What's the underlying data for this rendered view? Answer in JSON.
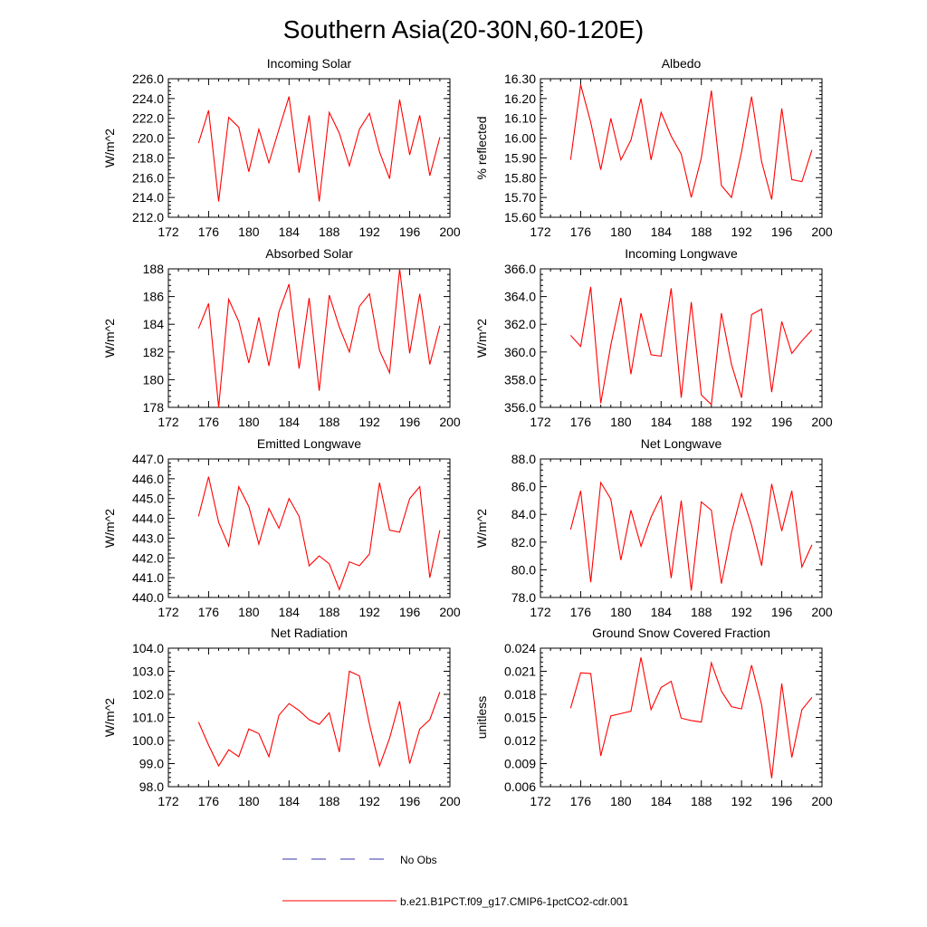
{
  "figure": {
    "title": "Southern Asia(20-30N,60-120E)"
  },
  "legend": {
    "entries": [
      {
        "label": "No Obs",
        "color": "#3333aa",
        "style": "dashed"
      },
      {
        "label": "b.e21.B1PCT.f09_g17.CMIP6-1pctCO2-cdr.001",
        "color": "#ff0000",
        "style": "solid"
      }
    ]
  },
  "chart_data": [
    {
      "type": "line",
      "title": "Incoming Solar",
      "ylabel": "W/m^2",
      "xlim": [
        172,
        200
      ],
      "ylim": [
        212,
        226
      ],
      "xticks": [
        172,
        176,
        180,
        184,
        188,
        192,
        196,
        200
      ],
      "xticklabels": [
        "172",
        "176",
        "180",
        "184",
        "188",
        "192",
        "196",
        "200"
      ],
      "yticks": [
        212,
        214,
        216,
        218,
        220,
        222,
        224,
        226
      ],
      "yticklabels": [
        "212.0",
        "214.0",
        "216.0",
        "218.0",
        "220.0",
        "222.0",
        "224.0",
        "226.0"
      ],
      "series": [
        {
          "name": "b.e21.B1PCT.f09_g17.CMIP6-1pctCO2-cdr.001",
          "color": "#ff0000",
          "x": [
            175,
            176,
            177,
            178,
            179,
            180,
            181,
            182,
            183,
            184,
            185,
            186,
            187,
            188,
            189,
            190,
            191,
            192,
            193,
            194,
            195,
            196,
            197,
            198,
            199
          ],
          "y": [
            219.5,
            222.8,
            213.6,
            222.1,
            221.1,
            216.6,
            220.9,
            217.5,
            220.9,
            224.2,
            216.5,
            222.3,
            213.6,
            222.6,
            220.5,
            217.2,
            220.9,
            222.5,
            218.6,
            215.9,
            223.9,
            218.3,
            222.3,
            216.2,
            220.1
          ]
        }
      ]
    },
    {
      "type": "line",
      "title": "Albedo",
      "ylabel": "% reflected",
      "xlim": [
        172,
        200
      ],
      "ylim": [
        15.6,
        16.3
      ],
      "xticks": [
        172,
        176,
        180,
        184,
        188,
        192,
        196,
        200
      ],
      "xticklabels": [
        "172",
        "176",
        "180",
        "184",
        "188",
        "192",
        "196",
        "200"
      ],
      "yticks": [
        15.6,
        15.7,
        15.8,
        15.9,
        16.0,
        16.1,
        16.2,
        16.3
      ],
      "yticklabels": [
        "15.60",
        "15.70",
        "15.80",
        "15.90",
        "16.00",
        "16.10",
        "16.20",
        "16.30"
      ],
      "series": [
        {
          "name": "b.e21.B1PCT.f09_g17.CMIP6-1pctCO2-cdr.001",
          "color": "#ff0000",
          "x": [
            175,
            176,
            177,
            178,
            179,
            180,
            181,
            182,
            183,
            184,
            185,
            186,
            187,
            188,
            189,
            190,
            191,
            192,
            193,
            194,
            195,
            196,
            197,
            198,
            199
          ],
          "y": [
            15.89,
            16.27,
            16.08,
            15.84,
            16.1,
            15.89,
            15.99,
            16.2,
            15.89,
            16.13,
            16.01,
            15.92,
            15.7,
            15.9,
            16.24,
            15.76,
            15.7,
            15.93,
            16.21,
            15.88,
            15.69,
            16.15,
            15.79,
            15.78,
            15.94
          ]
        }
      ]
    },
    {
      "type": "line",
      "title": "Absorbed Solar",
      "ylabel": "W/m^2",
      "xlim": [
        172,
        200
      ],
      "ylim": [
        178,
        188
      ],
      "xticks": [
        172,
        176,
        180,
        184,
        188,
        192,
        196,
        200
      ],
      "xticklabels": [
        "172",
        "176",
        "180",
        "184",
        "188",
        "192",
        "196",
        "200"
      ],
      "yticks": [
        178,
        180,
        182,
        184,
        186,
        188
      ],
      "yticklabels": [
        "178",
        "180",
        "182",
        "184",
        "186",
        "188"
      ],
      "series": [
        {
          "name": "b.e21.B1PCT.f09_g17.CMIP6-1pctCO2-cdr.001",
          "color": "#ff0000",
          "x": [
            175,
            176,
            177,
            178,
            179,
            180,
            181,
            182,
            183,
            184,
            185,
            186,
            187,
            188,
            189,
            190,
            191,
            192,
            193,
            194,
            195,
            196,
            197,
            198,
            199
          ],
          "y": [
            183.7,
            185.5,
            178.0,
            185.8,
            184.2,
            181.2,
            184.5,
            181.0,
            184.9,
            186.9,
            180.8,
            185.9,
            179.2,
            186.1,
            183.8,
            182.0,
            185.3,
            186.2,
            182.1,
            180.5,
            188.0,
            181.9,
            186.2,
            181.1,
            183.9
          ]
        }
      ]
    },
    {
      "type": "line",
      "title": "Incoming Longwave",
      "ylabel": "W/m^2",
      "xlim": [
        172,
        200
      ],
      "ylim": [
        356,
        366
      ],
      "xticks": [
        172,
        176,
        180,
        184,
        188,
        192,
        196,
        200
      ],
      "xticklabels": [
        "172",
        "176",
        "180",
        "184",
        "188",
        "192",
        "196",
        "200"
      ],
      "yticks": [
        356,
        358,
        360,
        362,
        364,
        366
      ],
      "yticklabels": [
        "356.0",
        "358.0",
        "360.0",
        "362.0",
        "364.0",
        "366.0"
      ],
      "series": [
        {
          "name": "b.e21.B1PCT.f09_g17.CMIP6-1pctCO2-cdr.001",
          "color": "#ff0000",
          "x": [
            175,
            176,
            177,
            178,
            179,
            180,
            181,
            182,
            183,
            184,
            185,
            186,
            187,
            188,
            189,
            190,
            191,
            192,
            193,
            194,
            195,
            196,
            197,
            198,
            199
          ],
          "y": [
            361.2,
            360.4,
            364.7,
            356.3,
            360.5,
            363.9,
            358.4,
            362.8,
            359.8,
            359.7,
            364.6,
            356.7,
            363.6,
            356.9,
            356.2,
            362.8,
            359.1,
            356.7,
            362.7,
            363.1,
            357.1,
            362.2,
            359.9,
            360.8,
            361.6
          ]
        }
      ]
    },
    {
      "type": "line",
      "title": "Emitted Longwave",
      "ylabel": "W/m^2",
      "xlim": [
        172,
        200
      ],
      "ylim": [
        440,
        447
      ],
      "xticks": [
        172,
        176,
        180,
        184,
        188,
        192,
        196,
        200
      ],
      "xticklabels": [
        "172",
        "176",
        "180",
        "184",
        "188",
        "192",
        "196",
        "200"
      ],
      "yticks": [
        440,
        441,
        442,
        443,
        444,
        445,
        446,
        447
      ],
      "yticklabels": [
        "440.0",
        "441.0",
        "442.0",
        "443.0",
        "444.0",
        "445.0",
        "446.0",
        "447.0"
      ],
      "series": [
        {
          "name": "b.e21.B1PCT.f09_g17.CMIP6-1pctCO2-cdr.001",
          "color": "#ff0000",
          "x": [
            175,
            176,
            177,
            178,
            179,
            180,
            181,
            182,
            183,
            184,
            185,
            186,
            187,
            188,
            189,
            190,
            191,
            192,
            193,
            194,
            195,
            196,
            197,
            198,
            199
          ],
          "y": [
            444.1,
            446.1,
            443.8,
            442.6,
            445.6,
            444.6,
            442.7,
            444.5,
            443.5,
            445.0,
            444.1,
            441.6,
            442.1,
            441.7,
            440.4,
            441.8,
            441.6,
            442.2,
            445.8,
            443.4,
            443.3,
            445.0,
            445.6,
            441.0,
            443.4
          ]
        }
      ]
    },
    {
      "type": "line",
      "title": "Net Longwave",
      "ylabel": "W/m^2",
      "xlim": [
        172,
        200
      ],
      "ylim": [
        78,
        88
      ],
      "xticks": [
        172,
        176,
        180,
        184,
        188,
        192,
        196,
        200
      ],
      "xticklabels": [
        "172",
        "176",
        "180",
        "184",
        "188",
        "192",
        "196",
        "200"
      ],
      "yticks": [
        78,
        80,
        82,
        84,
        86,
        88
      ],
      "yticklabels": [
        "78.0",
        "80.0",
        "82.0",
        "84.0",
        "86.0",
        "88.0"
      ],
      "series": [
        {
          "name": "b.e21.B1PCT.f09_g17.CMIP6-1pctCO2-cdr.001",
          "color": "#ff0000",
          "x": [
            175,
            176,
            177,
            178,
            179,
            180,
            181,
            182,
            183,
            184,
            185,
            186,
            187,
            188,
            189,
            190,
            191,
            192,
            193,
            194,
            195,
            196,
            197,
            198,
            199
          ],
          "y": [
            82.9,
            85.7,
            79.1,
            86.3,
            85.1,
            80.7,
            84.3,
            81.7,
            83.8,
            85.3,
            79.4,
            85.0,
            78.5,
            84.9,
            84.3,
            79.0,
            82.7,
            85.5,
            83.2,
            80.3,
            86.2,
            82.8,
            85.7,
            80.2,
            81.8
          ]
        }
      ]
    },
    {
      "type": "line",
      "title": "Net Radiation",
      "ylabel": "W/m^2",
      "xlim": [
        172,
        200
      ],
      "ylim": [
        98,
        104
      ],
      "xticks": [
        172,
        176,
        180,
        184,
        188,
        192,
        196,
        200
      ],
      "xticklabels": [
        "172",
        "176",
        "180",
        "184",
        "188",
        "192",
        "196",
        "200"
      ],
      "yticks": [
        98,
        99,
        100,
        101,
        102,
        103,
        104
      ],
      "yticklabels": [
        "98.0",
        "99.0",
        "100.0",
        "101.0",
        "102.0",
        "103.0",
        "104.0"
      ],
      "series": [
        {
          "name": "b.e21.B1PCT.f09_g17.CMIP6-1pctCO2-cdr.001",
          "color": "#ff0000",
          "x": [
            175,
            176,
            177,
            178,
            179,
            180,
            181,
            182,
            183,
            184,
            185,
            186,
            187,
            188,
            189,
            190,
            191,
            192,
            193,
            194,
            195,
            196,
            197,
            198,
            199
          ],
          "y": [
            100.8,
            99.8,
            98.9,
            99.6,
            99.3,
            100.5,
            100.3,
            99.3,
            101.1,
            101.6,
            101.3,
            100.9,
            100.7,
            101.2,
            99.5,
            103.0,
            102.8,
            100.7,
            98.9,
            100.1,
            101.7,
            99.0,
            100.5,
            100.9,
            102.1
          ]
        }
      ]
    },
    {
      "type": "line",
      "title": "Ground Snow Covered Fraction",
      "ylabel": "unitless",
      "xlim": [
        172,
        200
      ],
      "ylim": [
        0.006,
        0.024
      ],
      "xticks": [
        172,
        176,
        180,
        184,
        188,
        192,
        196,
        200
      ],
      "xticklabels": [
        "172",
        "176",
        "180",
        "184",
        "188",
        "192",
        "196",
        "200"
      ],
      "yticks": [
        0.006,
        0.009,
        0.012,
        0.015,
        0.018,
        0.021,
        0.024
      ],
      "yticklabels": [
        "0.006",
        "0.009",
        "0.012",
        "0.015",
        "0.018",
        "0.021",
        "0.024"
      ],
      "series": [
        {
          "name": "b.e21.B1PCT.f09_g17.CMIP6-1pctCO2-cdr.001",
          "color": "#ff0000",
          "x": [
            175,
            176,
            177,
            178,
            179,
            180,
            181,
            182,
            183,
            184,
            185,
            186,
            187,
            188,
            189,
            190,
            191,
            192,
            193,
            194,
            195,
            196,
            197,
            198,
            199
          ],
          "y": [
            0.0162,
            0.0208,
            0.0207,
            0.01,
            0.0152,
            0.0155,
            0.0158,
            0.0228,
            0.016,
            0.0189,
            0.0197,
            0.0149,
            0.0146,
            0.0144,
            0.0221,
            0.0184,
            0.0164,
            0.0161,
            0.0218,
            0.0166,
            0.0071,
            0.0194,
            0.0098,
            0.016,
            0.0176
          ]
        }
      ]
    }
  ]
}
